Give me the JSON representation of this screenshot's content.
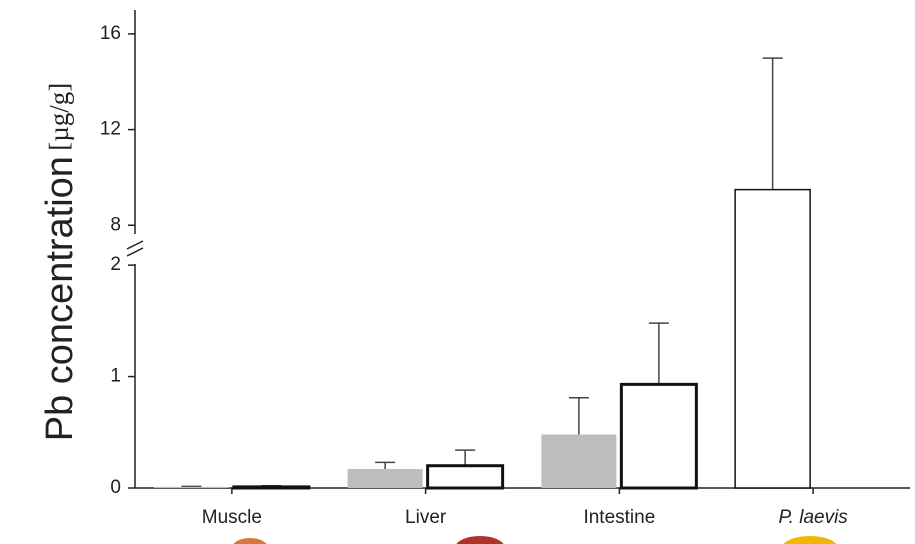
{
  "chart_data": {
    "type": "bar",
    "ylabel": "Pb concentration",
    "ylabel_unit": "[µg/g]",
    "categories": [
      "Muscle",
      "Liver",
      "Intestine",
      "P. laevis"
    ],
    "series": [
      {
        "color": "#bdbdbd",
        "values": [
          0.01,
          0.17,
          0.48,
          null
        ],
        "errors": [
          0.005,
          0.06,
          0.33,
          null
        ]
      },
      {
        "color": "#ffffff",
        "edgecolor": "#111111",
        "values": [
          0.01,
          0.2,
          0.93,
          9.49
        ],
        "errors": [
          0.01,
          0.14,
          0.55,
          5.5
        ]
      }
    ],
    "ylim": [
      0,
      2.1
    ],
    "yticks": [
      0,
      1,
      2
    ],
    "y_upper_lim": [
      7.3,
      17
    ],
    "y_upper_ticks": [
      8,
      12,
      16
    ],
    "axis_break": true
  }
}
